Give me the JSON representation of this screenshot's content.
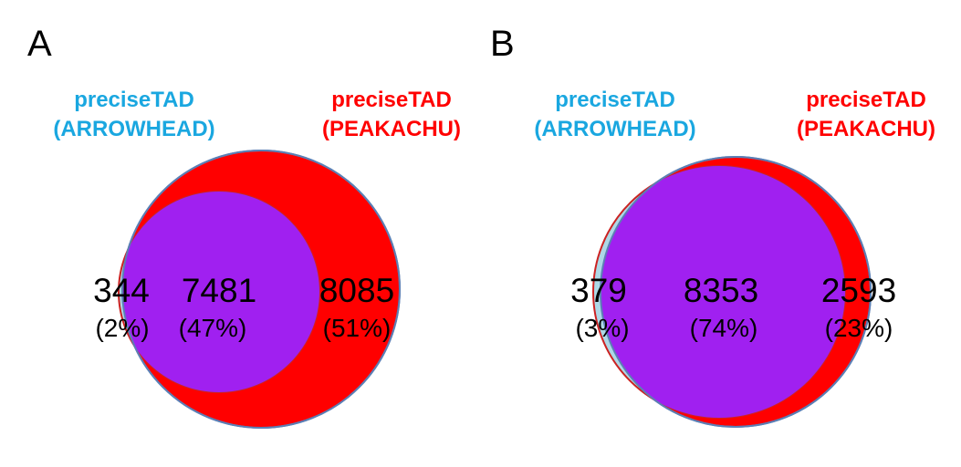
{
  "figure": {
    "panels": [
      {
        "label": "A",
        "left_set": {
          "name": "preciseTAD",
          "sub": "(ARROWHEAD)"
        },
        "right_set": {
          "name": "preciseTAD",
          "sub": "(PEAKACHU)"
        },
        "regions": {
          "left_only": {
            "count": "344",
            "pct": "(2%)"
          },
          "overlap": {
            "count": "7481",
            "pct": "(47%)"
          },
          "right_only": {
            "count": "8085",
            "pct": "(51%)"
          }
        }
      },
      {
        "label": "B",
        "left_set": {
          "name": "preciseTAD",
          "sub": "(ARROWHEAD)"
        },
        "right_set": {
          "name": "preciseTAD",
          "sub": "(PEAKACHU)"
        },
        "regions": {
          "left_only": {
            "count": "379",
            "pct": "(3%)"
          },
          "overlap": {
            "count": "8353",
            "pct": "(74%)"
          },
          "right_only": {
            "count": "2593",
            "pct": "(23%)"
          }
        }
      }
    ],
    "colors": {
      "left_set": "#1aa7e0",
      "right_set": "#ff0000",
      "overlap": "#a020f0",
      "left_only_fill": "#add8e6",
      "circle_outline": "#5b7fb5"
    }
  }
}
